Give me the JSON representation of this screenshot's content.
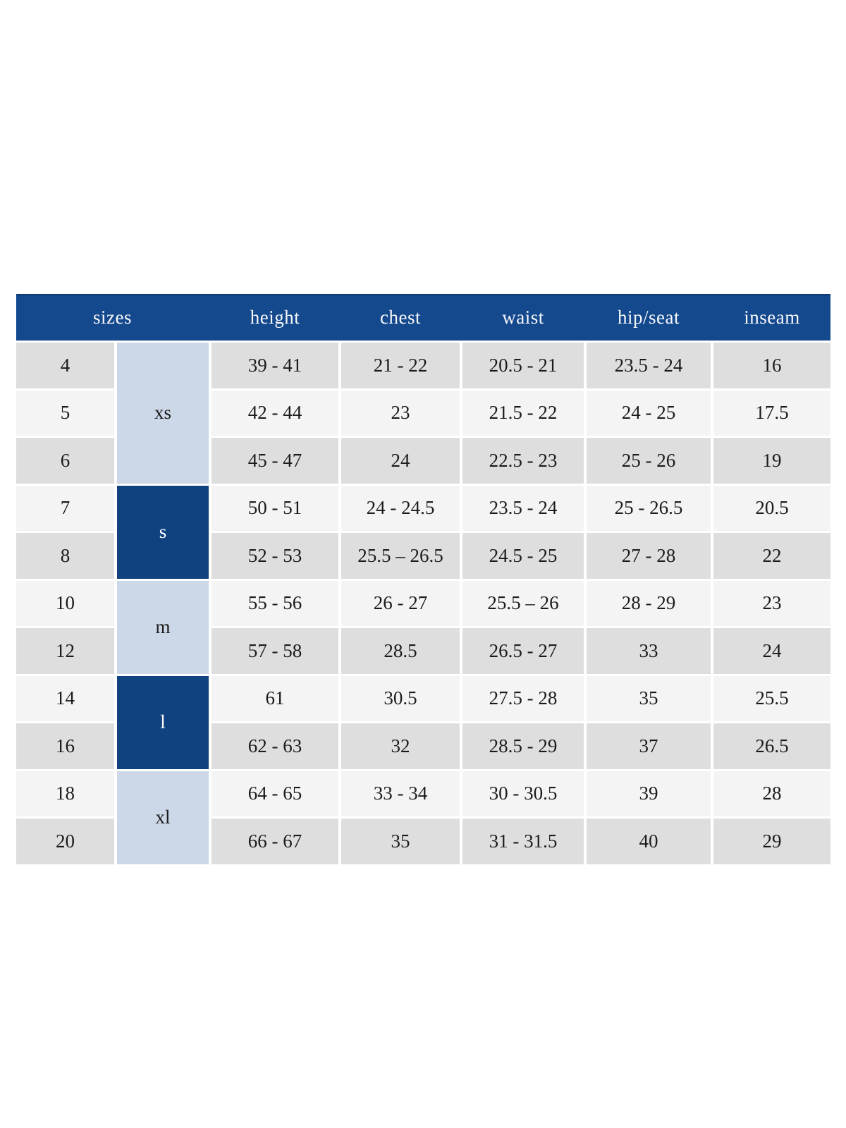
{
  "chart_data": {
    "type": "table",
    "columns": [
      "sizes",
      "height",
      "chest",
      "waist",
      "hip/seat",
      "inseam"
    ],
    "size_groups": [
      {
        "label": "xs",
        "sizes": [
          "4",
          "5",
          "6"
        ],
        "style": "light"
      },
      {
        "label": "s",
        "sizes": [
          "7",
          "8"
        ],
        "style": "dark"
      },
      {
        "label": "m",
        "sizes": [
          "10",
          "12"
        ],
        "style": "light"
      },
      {
        "label": "l",
        "sizes": [
          "14",
          "16"
        ],
        "style": "dark"
      },
      {
        "label": "xl",
        "sizes": [
          "18",
          "20"
        ],
        "style": "light"
      }
    ],
    "rows": [
      {
        "size": "4",
        "group": "xs",
        "height": "39 - 41",
        "chest": "21 - 22",
        "waist": "20.5 - 21",
        "hip_seat": "23.5 - 24",
        "inseam": "16"
      },
      {
        "size": "5",
        "group": "xs",
        "height": "42 - 44",
        "chest": "23",
        "waist": "21.5 - 22",
        "hip_seat": "24 - 25",
        "inseam": "17.5"
      },
      {
        "size": "6",
        "group": "xs",
        "height": "45 - 47",
        "chest": "24",
        "waist": "22.5 - 23",
        "hip_seat": "25 - 26",
        "inseam": "19"
      },
      {
        "size": "7",
        "group": "s",
        "height": "50 - 51",
        "chest": "24 - 24.5",
        "waist": "23.5 - 24",
        "hip_seat": "25 - 26.5",
        "inseam": "20.5"
      },
      {
        "size": "8",
        "group": "s",
        "height": "52 - 53",
        "chest": "25.5 – 26.5",
        "waist": "24.5 - 25",
        "hip_seat": "27 - 28",
        "inseam": "22"
      },
      {
        "size": "10",
        "group": "m",
        "height": "55 - 56",
        "chest": "26 - 27",
        "waist": "25.5 – 26",
        "hip_seat": "28 - 29",
        "inseam": "23"
      },
      {
        "size": "12",
        "group": "m",
        "height": "57 - 58",
        "chest": "28.5",
        "waist": "26.5 - 27",
        "hip_seat": "33",
        "inseam": "24"
      },
      {
        "size": "14",
        "group": "l",
        "height": "61",
        "chest": "30.5",
        "waist": "27.5 - 28",
        "hip_seat": "35",
        "inseam": "25.5"
      },
      {
        "size": "16",
        "group": "l",
        "height": "62 - 63",
        "chest": "32",
        "waist": "28.5 - 29",
        "hip_seat": "37",
        "inseam": "26.5"
      },
      {
        "size": "18",
        "group": "xl",
        "height": "64 - 65",
        "chest": "33 - 34",
        "waist": "30 - 30.5",
        "hip_seat": "39",
        "inseam": "28"
      },
      {
        "size": "20",
        "group": "xl",
        "height": "66 - 67",
        "chest": "35",
        "waist": "31 - 31.5",
        "hip_seat": "40",
        "inseam": "29"
      }
    ],
    "layout": {
      "header_position": "top",
      "grid": "off",
      "row_striping": true
    }
  },
  "colors": {
    "header_bg": "#15498d",
    "header_text": "#f6f8fb",
    "group_dark_bg": "#114280",
    "group_dark_text": "#ffffff",
    "group_light_bg": "#ccd8e7",
    "row_gray": "#dedede",
    "row_light": "#f4f4f4",
    "cell_text": "#1b1b1b",
    "page_bg": "#ffffff"
  }
}
